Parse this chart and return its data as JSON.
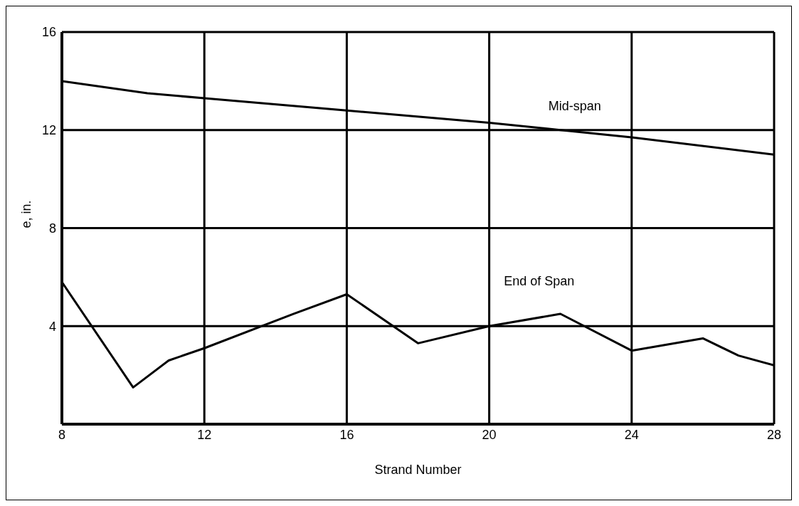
{
  "chart_data": {
    "type": "line",
    "xlabel": "Strand Number",
    "ylabel": "e, in.",
    "xlim": [
      8,
      28
    ],
    "xticks": [
      8,
      12,
      16,
      20,
      24,
      28
    ],
    "ylim": [
      0,
      16
    ],
    "yticks": [
      4,
      8,
      12,
      16
    ],
    "grid": true,
    "series": [
      {
        "name": "Mid-span",
        "color": "#000000",
        "x": [
          8,
          10.4,
          12,
          16,
          20,
          22,
          24,
          28
        ],
        "values": [
          14.0,
          13.5,
          13.3,
          12.8,
          12.3,
          12.0,
          11.7,
          11.0
        ]
      },
      {
        "name": "End of Span",
        "color": "#000000",
        "x": [
          8,
          10,
          11,
          12,
          14.5,
          16,
          18,
          20,
          22,
          24,
          26,
          27,
          28
        ],
        "values": [
          5.8,
          1.5,
          2.6,
          3.1,
          4.5,
          5.3,
          3.3,
          4.0,
          4.5,
          3.0,
          3.5,
          2.8,
          2.4
        ]
      }
    ]
  }
}
